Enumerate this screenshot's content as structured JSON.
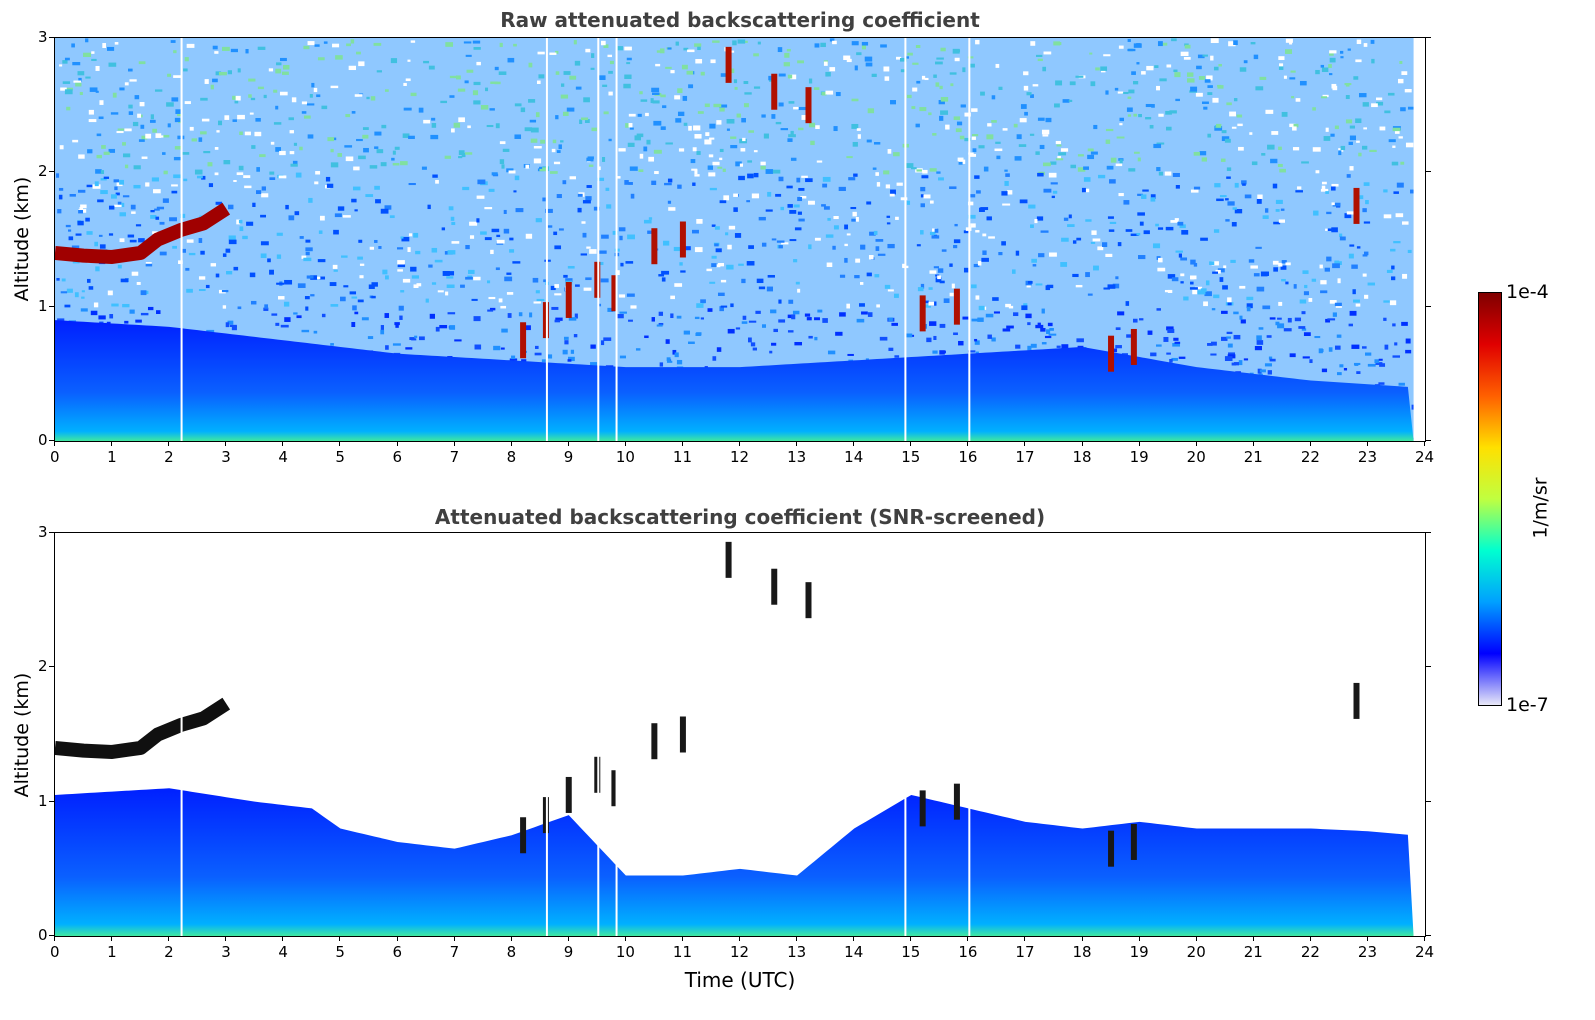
{
  "figure": {
    "xlabel": "Time (UTC)",
    "colorbar": {
      "label": "1/m/sr",
      "max_label": "1e-4",
      "min_label": "1e-7",
      "colormap": "jet",
      "scale": "log",
      "range": [
        1e-07,
        0.0001
      ],
      "colors": [
        "#e8e8f8",
        "#0000ff",
        "#00a0ff",
        "#00ffd0",
        "#c0ff40",
        "#ffe000",
        "#ff6000",
        "#e00000",
        "#800000"
      ]
    }
  },
  "chart_data": [
    {
      "type": "heatmap",
      "title": "Raw attenuated backscattering coefficient",
      "xlabel": "",
      "ylabel": "Altitude (km)",
      "xlim": [
        0,
        24
      ],
      "ylim": [
        0,
        3
      ],
      "xticks": [
        0,
        1,
        2,
        3,
        4,
        5,
        6,
        7,
        8,
        9,
        10,
        11,
        12,
        13,
        14,
        15,
        16,
        17,
        18,
        19,
        20,
        21,
        22,
        23,
        24
      ],
      "yticks": [
        0,
        1,
        2,
        3
      ],
      "grid": false,
      "layers": [
        {
          "name": "boundary-layer aerosol",
          "x": [
            0,
            2,
            4,
            6,
            8,
            10,
            12,
            14,
            16,
            18,
            20,
            22,
            23.8
          ],
          "top_km": [
            0.9,
            0.85,
            0.75,
            0.65,
            0.6,
            0.55,
            0.55,
            0.6,
            0.65,
            0.7,
            0.55,
            0.45,
            0.4
          ]
        },
        {
          "name": "cloud layer",
          "x": [
            0,
            0.5,
            1,
            1.5,
            1.8,
            2.2,
            2.6,
            3.0
          ],
          "altitude_km": [
            1.4,
            1.38,
            1.37,
            1.4,
            1.5,
            1.57,
            1.62,
            1.73
          ]
        },
        {
          "name": "scattered clouds",
          "x": [
            8.2,
            8.6,
            9.0,
            9.5,
            9.8,
            10.5,
            11.0,
            11.8,
            12.6,
            13.2,
            15.2,
            15.8,
            18.5,
            18.9,
            22.8
          ],
          "altitude_km": [
            0.75,
            0.9,
            1.05,
            1.2,
            1.1,
            1.45,
            1.5,
            2.8,
            2.6,
            2.5,
            0.95,
            1.0,
            0.65,
            0.7,
            1.75
          ]
        }
      ],
      "gaps_utc": [
        2.2,
        8.6,
        9.5,
        9.82,
        14.88,
        16.0
      ]
    },
    {
      "type": "heatmap",
      "title": "Attenuated backscattering coefficient (SNR-screened)",
      "xlabel": "Time (UTC)",
      "ylabel": "Altitude (km)",
      "xlim": [
        0,
        24
      ],
      "ylim": [
        0,
        3
      ],
      "xticks": [
        0,
        1,
        2,
        3,
        4,
        5,
        6,
        7,
        8,
        9,
        10,
        11,
        12,
        13,
        14,
        15,
        16,
        17,
        18,
        19,
        20,
        21,
        22,
        23,
        24
      ],
      "yticks": [
        0,
        1,
        2,
        3
      ],
      "grid": false,
      "signal_top_km": {
        "x": [
          0,
          2,
          3.5,
          4.5,
          5,
          6,
          7,
          8,
          9,
          10,
          11,
          12,
          13,
          14,
          15,
          16,
          17,
          18,
          19,
          20,
          21,
          22,
          23,
          23.8
        ],
        "y": [
          1.05,
          1.1,
          1.0,
          0.95,
          0.8,
          0.7,
          0.65,
          0.75,
          0.9,
          0.45,
          0.45,
          0.5,
          0.45,
          0.8,
          1.05,
          0.95,
          0.85,
          0.8,
          0.85,
          0.8,
          0.8,
          0.8,
          0.78,
          0.75
        ]
      },
      "gaps_utc": [
        2.2,
        8.6,
        9.5,
        9.82,
        14.88,
        16.0
      ]
    }
  ]
}
